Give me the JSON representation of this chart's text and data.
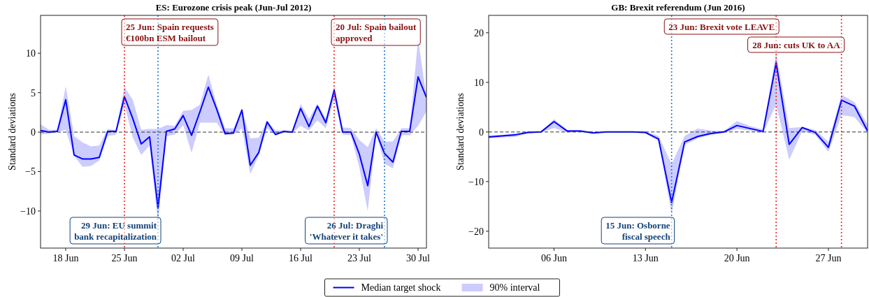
{
  "chart_data": [
    {
      "type": "line",
      "title": "ES: Eurozone crisis peak (Jun-Jul 2012)",
      "ylabel": "Standard deviations",
      "x": [
        "2012-06-15",
        "2012-06-16",
        "2012-06-17",
        "2012-06-18",
        "2012-06-19",
        "2012-06-20",
        "2012-06-21",
        "2012-06-22",
        "2012-06-23",
        "2012-06-24",
        "2012-06-25",
        "2012-06-26",
        "2012-06-27",
        "2012-06-28",
        "2012-06-29",
        "2012-06-30",
        "2012-07-01",
        "2012-07-02",
        "2012-07-03",
        "2012-07-04",
        "2012-07-05",
        "2012-07-06",
        "2012-07-07",
        "2012-07-08",
        "2012-07-09",
        "2012-07-10",
        "2012-07-11",
        "2012-07-12",
        "2012-07-13",
        "2012-07-14",
        "2012-07-15",
        "2012-07-16",
        "2012-07-17",
        "2012-07-18",
        "2012-07-19",
        "2012-07-20",
        "2012-07-21",
        "2012-07-22",
        "2012-07-23",
        "2012-07-24",
        "2012-07-25",
        "2012-07-26",
        "2012-07-27",
        "2012-07-28",
        "2012-07-29",
        "2012-07-30",
        "2012-07-31"
      ],
      "series": [
        {
          "name": "Median target shock",
          "color": "#0000ff",
          "values": [
            0.2,
            0.0,
            0.1,
            4.1,
            -2.9,
            -3.4,
            -3.4,
            -3.2,
            0.1,
            0.1,
            4.5,
            1.7,
            -1.5,
            -0.6,
            -9.6,
            0.1,
            0.4,
            2.1,
            -0.4,
            2.6,
            5.7,
            2.9,
            -0.2,
            -0.1,
            2.8,
            -4.2,
            -2.6,
            1.3,
            -0.3,
            0.1,
            0.0,
            3.0,
            0.7,
            3.3,
            1.2,
            5.3,
            0.0,
            0.0,
            -2.8,
            -6.8,
            0.0,
            -2.7,
            -3.8,
            0.1,
            0.1,
            7.0,
            4.4
          ],
          "upper": [
            1.0,
            0.3,
            0.3,
            5.8,
            -0.5,
            -1.3,
            -1.8,
            -1.7,
            0.4,
            0.3,
            5.7,
            4.1,
            0.3,
            0.4,
            0.4,
            0.9,
            0.8,
            2.7,
            2.8,
            3.5,
            7.3,
            3.5,
            0.5,
            0.5,
            2.9,
            -0.8,
            -0.7,
            1.4,
            0.2,
            0.2,
            0.1,
            3.6,
            1.7,
            3.6,
            1.7,
            5.8,
            0.6,
            0.5,
            -1.0,
            -1.9,
            0.5,
            -1.2,
            -1.2,
            0.5,
            0.5,
            11.8,
            4.4
          ],
          "lower": [
            -0.3,
            -0.2,
            0.0,
            0.3,
            -3.0,
            -4.4,
            -4.3,
            -3.6,
            -0.5,
            -0.3,
            3.5,
            -0.7,
            -2.9,
            -1.7,
            -11.5,
            -0.5,
            -0.3,
            0.9,
            -2.6,
            1.2,
            1.2,
            1.2,
            -0.4,
            -0.3,
            0.5,
            -5.3,
            -3.0,
            0.5,
            -0.4,
            -0.1,
            -0.1,
            0.8,
            0.2,
            1.5,
            0.5,
            4.3,
            -0.3,
            -0.4,
            -4.5,
            -10.0,
            -0.2,
            -4.0,
            -4.6,
            -0.4,
            -0.4,
            0.8,
            2.6
          ]
        }
      ],
      "xlim": [
        "2012-06-15",
        "2012-07-31"
      ],
      "xticks": [
        {
          "value": "2012-06-18",
          "label": "18 Jun"
        },
        {
          "value": "2012-06-25",
          "label": "25 Jun"
        },
        {
          "value": "2012-07-02",
          "label": "02 Jul"
        },
        {
          "value": "2012-07-09",
          "label": "09 Jul"
        },
        {
          "value": "2012-07-16",
          "label": "16 Jul"
        },
        {
          "value": "2012-07-23",
          "label": "23 Jul"
        },
        {
          "value": "2012-07-30",
          "label": "30 Jul"
        }
      ],
      "ylim": [
        -14.7,
        14.8
      ],
      "yticks": [
        {
          "value": -10,
          "label": "−10"
        },
        {
          "value": -5,
          "label": "−5"
        },
        0,
        5,
        10
      ],
      "ref_lines": [
        {
          "axis": "y",
          "value": 0,
          "color": "#333333",
          "line_style": "dashed"
        },
        {
          "axis": "x",
          "value": "2012-06-25",
          "label": "25 Jun: Spain requests\n€100bn ESM bailout",
          "color": "#ee2222",
          "line_style": "dotted"
        },
        {
          "axis": "x",
          "value": "2012-06-29",
          "label": "29 Jun: EU summit\nbank recapitalization",
          "color": "#1f77d4",
          "line_style": "dotted"
        },
        {
          "axis": "x",
          "value": "2012-07-20",
          "label": "20 Jul: Spain bailout\napproved",
          "color": "#ee2222",
          "line_style": "dotted"
        },
        {
          "axis": "x",
          "value": "2012-07-26",
          "label": "26 Jul: Draghi\n'Whatever it takes'",
          "color": "#1f77d4",
          "line_style": "dotted"
        }
      ],
      "annotations": [
        "90% interval"
      ],
      "grid": false,
      "legend": "bottom",
      "marker": "none",
      "line_style": "solid"
    },
    {
      "type": "line",
      "title": "GB: Brexit referendum (Jun 2016)",
      "ylabel": "Standard deviations",
      "x": [
        "2016-06-01",
        "2016-06-02",
        "2016-06-03",
        "2016-06-04",
        "2016-06-05",
        "2016-06-06",
        "2016-06-07",
        "2016-06-08",
        "2016-06-09",
        "2016-06-10",
        "2016-06-11",
        "2016-06-12",
        "2016-06-13",
        "2016-06-14",
        "2016-06-15",
        "2016-06-16",
        "2016-06-17",
        "2016-06-18",
        "2016-06-19",
        "2016-06-20",
        "2016-06-21",
        "2016-06-22",
        "2016-06-23",
        "2016-06-24",
        "2016-06-25",
        "2016-06-26",
        "2016-06-27",
        "2016-06-28",
        "2016-06-29",
        "2016-06-30"
      ],
      "series": [
        {
          "name": "Median target shock",
          "color": "#0000ff",
          "values": [
            -1.0,
            -0.8,
            -0.6,
            -0.1,
            0.0,
            2.1,
            0.2,
            0.2,
            -0.2,
            0.0,
            0.0,
            0.0,
            -0.1,
            -1.4,
            -14.2,
            -2.0,
            -0.9,
            -0.3,
            0.0,
            1.3,
            0.7,
            0.1,
            13.9,
            -2.5,
            0.9,
            -0.1,
            -3.1,
            6.4,
            5.2,
            0.2
          ],
          "upper": [
            -0.7,
            -0.6,
            -0.3,
            0.1,
            0.1,
            2.6,
            0.4,
            0.4,
            0.0,
            0.1,
            0.1,
            0.1,
            0.1,
            -0.8,
            -6.5,
            -0.8,
            0.7,
            0.3,
            0.2,
            2.2,
            1.2,
            0.5,
            15.9,
            0.8,
            1.0,
            0.4,
            -2.0,
            7.5,
            6.0,
            1.5
          ],
          "lower": [
            -1.3,
            -1.1,
            -1.0,
            -0.3,
            -0.1,
            0.8,
            -0.1,
            0.0,
            -0.3,
            -0.1,
            -0.1,
            -0.1,
            -0.3,
            -1.8,
            -16.5,
            -2.6,
            -1.3,
            -0.6,
            -0.2,
            0.6,
            0.3,
            -0.2,
            5.5,
            -5.6,
            0.2,
            -0.6,
            -4.0,
            3.4,
            3.0,
            -0.2
          ]
        }
      ],
      "xlim": [
        "2016-06-01",
        "2016-06-30"
      ],
      "xticks": [
        {
          "value": "2016-06-06",
          "label": "06 Jun"
        },
        {
          "value": "2016-06-13",
          "label": "13 Jun"
        },
        {
          "value": "2016-06-20",
          "label": "20 Jun"
        },
        {
          "value": "2016-06-27",
          "label": "27 Jun"
        }
      ],
      "ylim": [
        -23.4,
        23.5
      ],
      "yticks": [
        {
          "value": -20,
          "label": "−20"
        },
        {
          "value": -10,
          "label": "−10"
        },
        0,
        10,
        20
      ],
      "ref_lines": [
        {
          "axis": "y",
          "value": 0,
          "color": "#333333",
          "line_style": "dashed"
        },
        {
          "axis": "x",
          "value": "2016-06-15",
          "label": "15 Jun: Osborne\nfiscal speech",
          "color": "#1f77d4",
          "line_style": "dotted"
        },
        {
          "axis": "x",
          "value": "2016-06-23",
          "label": "23 Jun: Brexit vote LEAVE",
          "color": "#ee2222",
          "line_style": "dotted"
        },
        {
          "axis": "x",
          "value": "2016-06-28",
          "label": "28 Jun: cuts UK to AA",
          "color": "#ee2222",
          "line_style": "dotted"
        }
      ],
      "grid": false,
      "legend": "bottom",
      "marker": "none",
      "line_style": "solid"
    }
  ]
}
